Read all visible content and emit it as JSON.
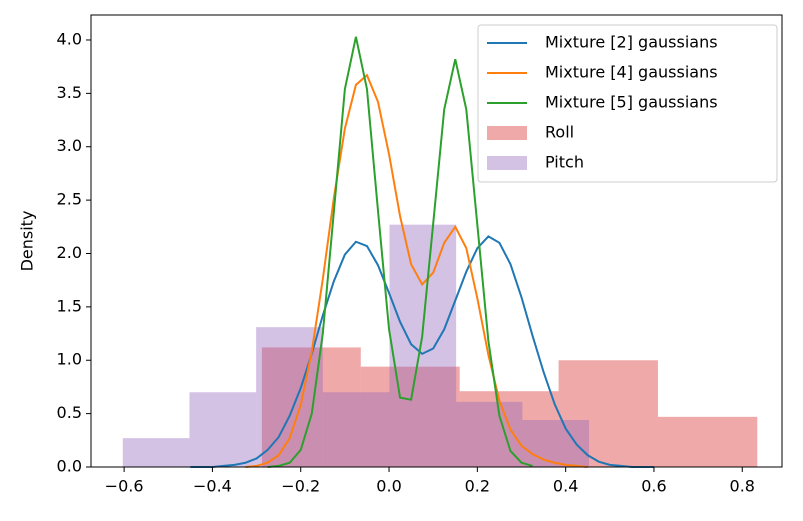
{
  "chart_data": {
    "type": "line",
    "y_label": "Density",
    "xlim": [
      -0.675,
      0.89
    ],
    "ylim": [
      0,
      4.234
    ],
    "xticks": [
      {
        "value": -0.6,
        "label": "−0.6"
      },
      {
        "value": -0.4,
        "label": "−0.4"
      },
      {
        "value": -0.2,
        "label": "−0.2"
      },
      {
        "value": 0,
        "label": "0.0"
      },
      0.2,
      0.4,
      0.6,
      0.8
    ],
    "yticks": [
      {
        "value": 0,
        "label": "0.0"
      },
      0.5,
      {
        "value": 1,
        "label": "1.0"
      },
      1.5,
      {
        "value": 2,
        "label": "2.0"
      },
      2.5,
      {
        "value": 3,
        "label": "3.0"
      },
      3.5,
      {
        "value": 4,
        "label": "4.0"
      }
    ],
    "legend": "upper right",
    "histograms": [
      {
        "name": "Roll",
        "color": "#d62728",
        "opacity": 0.4,
        "bins": [
          -0.288,
          -0.064,
          0.16,
          0.384,
          0.609,
          0.834
        ],
        "counts": [
          1.12,
          0.94,
          0.71,
          1.0,
          0.47
        ]
      },
      {
        "name": "Pitch",
        "color": "#9467bd",
        "opacity": 0.4,
        "bins": [
          -0.603,
          -0.452,
          -0.301,
          -0.15,
          0.001,
          0.152,
          0.302,
          0.453
        ],
        "counts": [
          0.27,
          0.7,
          1.31,
          0.7,
          2.27,
          0.61,
          0.44
        ]
      }
    ],
    "x": [
      -0.45,
      -0.425,
      -0.4,
      -0.375,
      -0.35,
      -0.325,
      -0.3,
      -0.275,
      -0.25,
      -0.225,
      -0.2,
      -0.175,
      -0.15,
      -0.125,
      -0.1,
      -0.075,
      -0.05,
      -0.025,
      0,
      0.025,
      0.05,
      0.075,
      0.1,
      0.125,
      0.15,
      0.175,
      0.2,
      0.225,
      0.25,
      0.275,
      0.3,
      0.325,
      0.35,
      0.375,
      0.4,
      0.425,
      0.45,
      0.475,
      0.5,
      0.525,
      0.55,
      0.575,
      0.6
    ],
    "series": [
      {
        "name": "Mixture [2] gaussians",
        "color": "#1f77b4",
        "values": [
          0,
          0,
          0,
          0.01,
          0.02,
          0.04,
          0.08,
          0.16,
          0.28,
          0.48,
          0.74,
          1.06,
          1.42,
          1.74,
          1.99,
          2.11,
          2.07,
          1.89,
          1.63,
          1.36,
          1.15,
          1.06,
          1.11,
          1.29,
          1.56,
          1.83,
          2.05,
          2.16,
          2.1,
          1.9,
          1.59,
          1.23,
          0.89,
          0.59,
          0.36,
          0.21,
          0.11,
          0.05,
          0.02,
          0.01,
          0,
          0,
          0
        ]
      },
      {
        "name": "Mixture [4] gaussians",
        "color": "#ff7f0e",
        "values": [
          null,
          null,
          null,
          null,
          null,
          0,
          0.01,
          0.04,
          0.11,
          0.27,
          0.58,
          1.08,
          1.76,
          2.52,
          3.17,
          3.58,
          3.67,
          3.42,
          2.93,
          2.35,
          1.9,
          1.71,
          1.82,
          2.1,
          2.25,
          2.05,
          1.58,
          1.05,
          0.62,
          0.35,
          0.2,
          0.12,
          0.07,
          0.04,
          0.02,
          0.01,
          0,
          null,
          null,
          null,
          null,
          null,
          null
        ]
      },
      {
        "name": "Mixture [5] gaussians",
        "color": "#2ca02c",
        "values": [
          null,
          null,
          null,
          null,
          null,
          null,
          null,
          0,
          0.01,
          0.04,
          0.16,
          0.5,
          1.25,
          2.39,
          3.54,
          4.03,
          3.54,
          2.4,
          1.29,
          0.65,
          0.63,
          1.22,
          2.28,
          3.35,
          3.82,
          3.35,
          2.27,
          1.18,
          0.48,
          0.15,
          0.04,
          0.01,
          null,
          null,
          null,
          null,
          null,
          null,
          null,
          null,
          null,
          null,
          null
        ]
      }
    ]
  }
}
